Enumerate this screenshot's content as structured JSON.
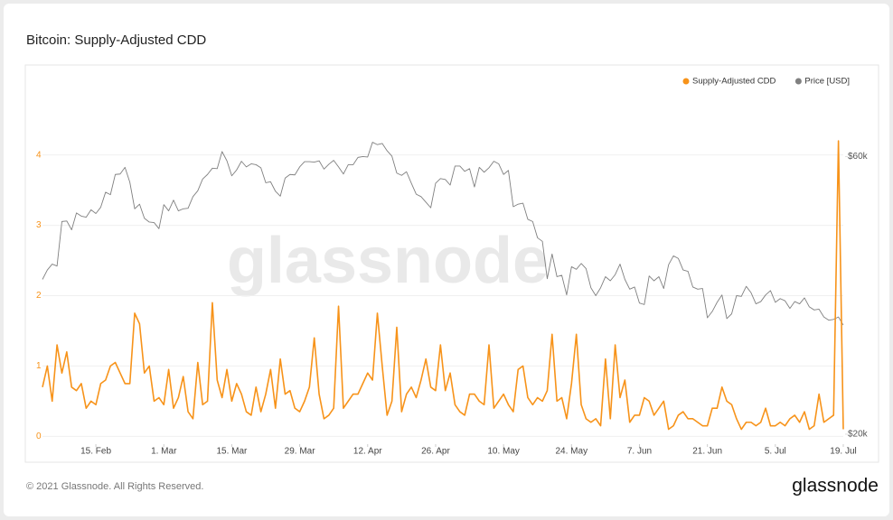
{
  "chart_data": {
    "type": "line",
    "title": "Bitcoin: Supply-Adjusted CDD",
    "footer": "© 2021 Glassnode. All Rights Reserved.",
    "brand": "glassnode",
    "watermark": "glassnode",
    "legend": "top-right",
    "grid": true,
    "x": [
      "4. Feb",
      "5. Feb",
      "6. Feb",
      "7. Feb",
      "8. Feb",
      "9. Feb",
      "10. Feb",
      "11. Feb",
      "12. Feb",
      "13. Feb",
      "14. Feb",
      "15. Feb",
      "16. Feb",
      "17. Feb",
      "18. Feb",
      "19. Feb",
      "20. Feb",
      "21. Feb",
      "22. Feb",
      "23. Feb",
      "24. Feb",
      "25. Feb",
      "26. Feb",
      "27. Feb",
      "28. Feb",
      "1. Mar",
      "2. Mar",
      "3. Mar",
      "4. Mar",
      "5. Mar",
      "6. Mar",
      "7. Mar",
      "8. Mar",
      "9. Mar",
      "10. Mar",
      "11. Mar",
      "12. Mar",
      "13. Mar",
      "14. Mar",
      "15. Mar",
      "16. Mar",
      "17. Mar",
      "18. Mar",
      "19. Mar",
      "20. Mar",
      "21. Mar",
      "22. Mar",
      "23. Mar",
      "24. Mar",
      "25. Mar",
      "26. Mar",
      "27. Mar",
      "28. Mar",
      "29. Mar",
      "30. Mar",
      "31. Mar",
      "1. Apr",
      "2. Apr",
      "3. Apr",
      "4. Apr",
      "5. Apr",
      "6. Apr",
      "7. Apr",
      "8. Apr",
      "9. Apr",
      "10. Apr",
      "11. Apr",
      "12. Apr",
      "13. Apr",
      "14. Apr",
      "15. Apr",
      "16. Apr",
      "17. Apr",
      "18. Apr",
      "19. Apr",
      "20. Apr",
      "21. Apr",
      "22. Apr",
      "23. Apr",
      "24. Apr",
      "25. Apr",
      "26. Apr",
      "27. Apr",
      "28. Apr",
      "29. Apr",
      "30. Apr",
      "1. May",
      "2. May",
      "3. May",
      "4. May",
      "5. May",
      "6. May",
      "7. May",
      "8. May",
      "9. May",
      "10. May",
      "11. May",
      "12. May",
      "13. May",
      "14. May",
      "15. May",
      "16. May",
      "17. May",
      "18. May",
      "19. May",
      "20. May",
      "21. May",
      "22. May",
      "23. May",
      "24. May",
      "25. May",
      "26. May",
      "27. May",
      "28. May",
      "29. May",
      "30. May",
      "31. May",
      "1. Jun",
      "2. Jun",
      "3. Jun",
      "4. Jun",
      "5. Jun",
      "6. Jun",
      "7. Jun",
      "8. Jun",
      "9. Jun",
      "10. Jun",
      "11. Jun",
      "12. Jun",
      "13. Jun",
      "14. Jun",
      "15. Jun",
      "16. Jun",
      "17. Jun",
      "18. Jun",
      "19. Jun",
      "20. Jun",
      "21. Jun",
      "22. Jun",
      "23. Jun",
      "24. Jun",
      "25. Jun",
      "26. Jun",
      "27. Jun",
      "28. Jun",
      "29. Jun",
      "30. Jun",
      "1. Jul",
      "2. Jul",
      "3. Jul",
      "4. Jul",
      "5. Jul",
      "6. Jul",
      "7. Jul",
      "8. Jul",
      "9. Jul",
      "10. Jul",
      "11. Jul",
      "12. Jul",
      "13. Jul",
      "14. Jul",
      "15. Jul",
      "16. Jul",
      "17. Jul",
      "18. Jul",
      "19. Jul"
    ],
    "xticks": [
      "15. Feb",
      "1. Mar",
      "15. Mar",
      "29. Mar",
      "12. Apr",
      "26. Apr",
      "10. May",
      "24. May",
      "7. Jun",
      "21. Jun",
      "5. Jul",
      "19. Jul"
    ],
    "ylim": [
      -0.06,
      4.92
    ],
    "yticks": [
      0,
      1,
      2,
      3,
      4
    ],
    "y2lim": [
      19500,
      78000
    ],
    "y2scale": "log",
    "y2ticks": [
      {
        "value": 20000,
        "label": "$20k"
      },
      {
        "value": 60000,
        "label": "$60k"
      }
    ],
    "series": [
      {
        "name": "Supply-Adjusted CDD",
        "color": "#f7931a",
        "axis": "y",
        "values": [
          0.7,
          1.0,
          0.5,
          1.3,
          0.9,
          1.2,
          0.7,
          0.65,
          0.75,
          0.4,
          0.5,
          0.45,
          0.75,
          0.8,
          1.0,
          1.05,
          0.9,
          0.75,
          0.75,
          1.75,
          1.6,
          0.9,
          1.0,
          0.5,
          0.55,
          0.45,
          0.95,
          0.4,
          0.55,
          0.85,
          0.35,
          0.25,
          1.05,
          0.45,
          0.5,
          1.9,
          0.8,
          0.55,
          0.95,
          0.5,
          0.75,
          0.6,
          0.35,
          0.3,
          0.7,
          0.35,
          0.6,
          0.95,
          0.4,
          1.1,
          0.6,
          0.65,
          0.4,
          0.35,
          0.5,
          0.7,
          1.4,
          0.6,
          0.25,
          0.3,
          0.4,
          1.85,
          0.4,
          0.5,
          0.6,
          0.6,
          0.75,
          0.9,
          0.8,
          1.75,
          1.0,
          0.3,
          0.5,
          1.55,
          0.35,
          0.6,
          0.7,
          0.55,
          0.8,
          1.1,
          0.7,
          0.65,
          1.3,
          0.65,
          0.9,
          0.45,
          0.35,
          0.3,
          0.6,
          0.6,
          0.5,
          0.45,
          1.3,
          0.4,
          0.5,
          0.6,
          0.45,
          0.35,
          0.95,
          1.0,
          0.55,
          0.45,
          0.55,
          0.5,
          0.65,
          1.45,
          0.5,
          0.55,
          0.25,
          0.75,
          1.45,
          0.45,
          0.25,
          0.2,
          0.25,
          0.15,
          1.1,
          0.25,
          1.3,
          0.55,
          0.8,
          0.2,
          0.3,
          0.3,
          0.55,
          0.5,
          0.3,
          0.4,
          0.5,
          0.1,
          0.15,
          0.3,
          0.35,
          0.25,
          0.25,
          0.2,
          0.15,
          0.15,
          0.4,
          0.4,
          0.7,
          0.5,
          0.45,
          0.25,
          0.1,
          0.2,
          0.2,
          0.15,
          0.2,
          0.4,
          0.15,
          0.15,
          0.2,
          0.15,
          0.25,
          0.3,
          0.2,
          0.35,
          0.1,
          0.15,
          0.6,
          0.2,
          0.25,
          0.3,
          4.2,
          0.1
        ]
      },
      {
        "name": "Price [USD]",
        "color": "#808080",
        "axis": "y2",
        "values": [
          36900,
          38300,
          39200,
          38900,
          46400,
          46500,
          44900,
          48000,
          47400,
          47200,
          48600,
          47900,
          49100,
          52100,
          51600,
          55900,
          56000,
          57500,
          54200,
          48800,
          49700,
          47000,
          46300,
          46200,
          45100,
          49600,
          48400,
          50500,
          48400,
          48800,
          48900,
          51200,
          52400,
          54900,
          55900,
          57300,
          57200,
          61200,
          59000,
          55600,
          56900,
          58900,
          57600,
          58300,
          58100,
          57400,
          54100,
          54300,
          52300,
          51300,
          55100,
          55900,
          55800,
          57600,
          58800,
          58800,
          58700,
          59000,
          57100,
          58200,
          59100,
          57600,
          56000,
          58100,
          58100,
          59800,
          60000,
          59900,
          63500,
          62900,
          63200,
          61400,
          60100,
          56200,
          55700,
          56500,
          54000,
          51700,
          51200,
          50100,
          49000,
          54000,
          55000,
          54800,
          53600,
          57800,
          57800,
          56600,
          57200,
          53200,
          57500,
          56400,
          57400,
          58900,
          58300,
          55900,
          56800,
          49200,
          49700,
          49900,
          46800,
          46400,
          43500,
          42900,
          37000,
          40800,
          37300,
          37500,
          34700,
          38800,
          38400,
          39300,
          38500,
          35700,
          34600,
          35700,
          37300,
          36700,
          37600,
          39200,
          36900,
          35500,
          35800,
          33600,
          33400,
          37400,
          36700,
          37300,
          35600,
          39100,
          40500,
          40100,
          38300,
          38100,
          35800,
          35500,
          35600,
          31700,
          32500,
          33700,
          34700,
          31600,
          32200,
          34600,
          34500,
          35900,
          35000,
          33500,
          33800,
          34700,
          35300,
          33700,
          34200,
          33900,
          32900,
          33800,
          33500,
          34300,
          33100,
          32700,
          32800,
          31800,
          31400,
          31500,
          31800,
          30800
        ]
      }
    ]
  }
}
